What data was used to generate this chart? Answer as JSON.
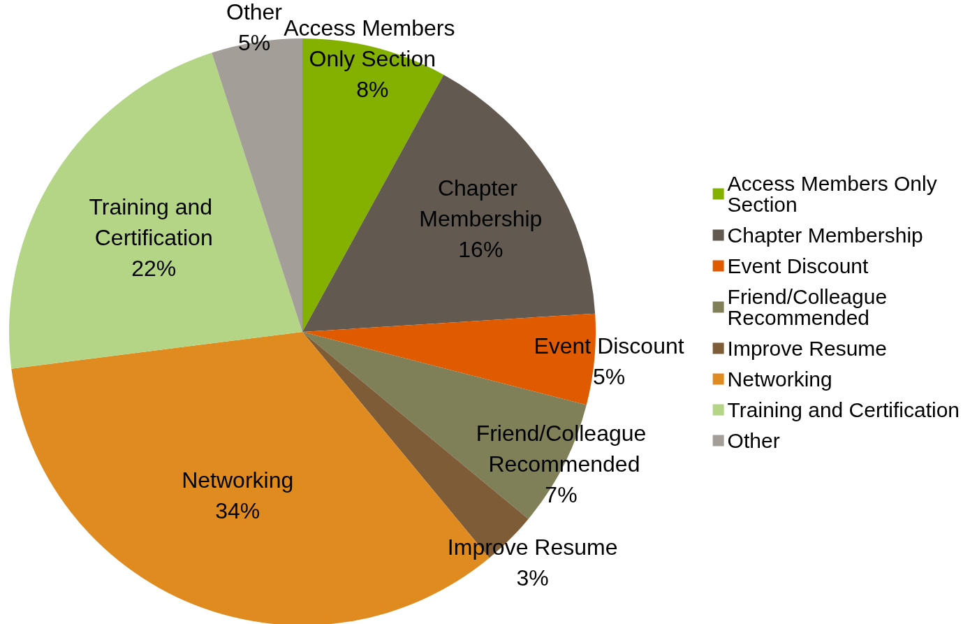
{
  "chart_data": {
    "type": "pie",
    "categories": [
      "Access Members Only Section",
      "Chapter Membership",
      "Event Discount",
      "Friend/Colleague Recommended",
      "Improve Resume",
      "Networking",
      "Training and Certification",
      "Other"
    ],
    "values": [
      8,
      16,
      5,
      7,
      3,
      34,
      22,
      5
    ],
    "colors": [
      "#84b000",
      "#625a50",
      "#e05a00",
      "#7f8058",
      "#7f5c38",
      "#e08b1f",
      "#b3d585",
      "#a39e97"
    ],
    "value_labels": [
      "8%",
      "16%",
      "5%",
      "7%",
      "3%",
      "34%",
      "22%",
      "5%"
    ],
    "legend": "right"
  }
}
